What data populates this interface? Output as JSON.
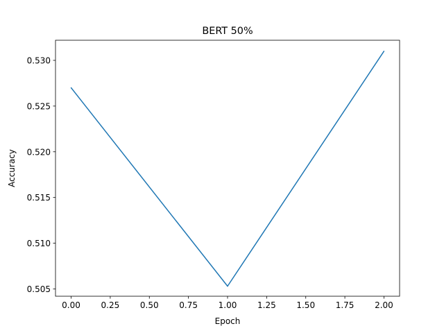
{
  "chart_data": {
    "type": "line",
    "title": "BERT 50%",
    "xlabel": "Epoch",
    "ylabel": "Accuracy",
    "xlim": [
      -0.1,
      2.1
    ],
    "ylim": [
      0.5042,
      0.5322
    ],
    "x_ticks": [
      0.0,
      0.25,
      0.5,
      0.75,
      1.0,
      1.25,
      1.5,
      1.75,
      2.0
    ],
    "x_tick_labels": [
      "0.00",
      "0.25",
      "0.50",
      "0.75",
      "1.00",
      "1.25",
      "1.50",
      "1.75",
      "2.00"
    ],
    "y_ticks": [
      0.505,
      0.51,
      0.515,
      0.52,
      0.525,
      0.53
    ],
    "y_tick_labels": [
      "0.505",
      "0.510",
      "0.515",
      "0.520",
      "0.525",
      "0.530"
    ],
    "grid": false,
    "legend": "none",
    "series": [
      {
        "x": [
          0,
          1,
          2
        ],
        "values": [
          0.527,
          0.5053,
          0.531
        ],
        "color": "#1f77b4"
      }
    ]
  }
}
